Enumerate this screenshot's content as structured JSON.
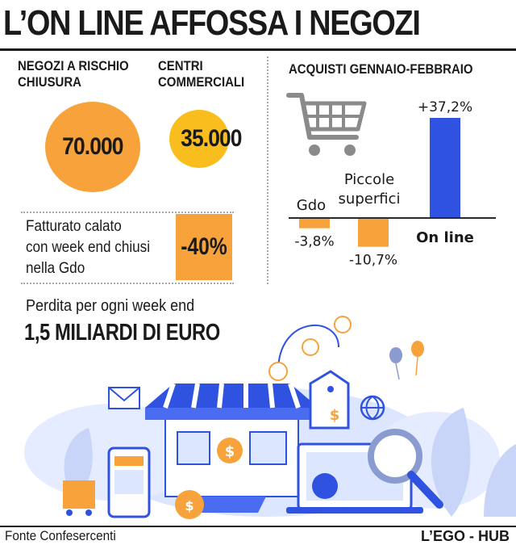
{
  "title": "L’ON LINE AFFOSSA I NEGOZI",
  "stores": {
    "risk_label": [
      "NEGOZI A RISCHIO",
      "CHIUSURA"
    ],
    "risk_value": "70.000",
    "malls_label": [
      "CENTRI",
      "COMMERCIALI"
    ],
    "malls_value": "35.000"
  },
  "revenue": {
    "text": [
      "Fatturato calato",
      "con week end chiusi",
      "nella Gdo"
    ],
    "value": "-40%"
  },
  "loss": {
    "label": "Perdita per ogni week end",
    "value": "1,5 MILIARDI DI EURO"
  },
  "chart_data": {
    "type": "bar",
    "title": "ACQUISTI GENNAIO-FEBBRAIO",
    "categories": [
      "Gdo",
      "Piccole superfici",
      "On line"
    ],
    "values": [
      -3.8,
      -10.7,
      37.2
    ],
    "value_labels": [
      "-3,8%",
      "-10,7%",
      "+37,2%"
    ],
    "colors": [
      "#f7a23a",
      "#f7a23a",
      "#2f52e0"
    ],
    "ylim": [
      -12,
      40
    ],
    "grid": false
  },
  "footer": {
    "source": "Fonte Confesercenti",
    "brand": "L’EGO - HUB"
  },
  "colors": {
    "orange": "#f7a23a",
    "yellow": "#f9be1e",
    "blue": "#2f52e0",
    "light_blue": "#dde6ff"
  },
  "illustration": {
    "icons": [
      "shopping-cart-icon",
      "storefront-icon",
      "mail-icon",
      "globe-icon",
      "dollar-coin-icon",
      "price-tag-icon",
      "magnifier-icon",
      "laptop-icon",
      "smartphone-icon",
      "money-bag-icon",
      "balloon-icon"
    ]
  }
}
